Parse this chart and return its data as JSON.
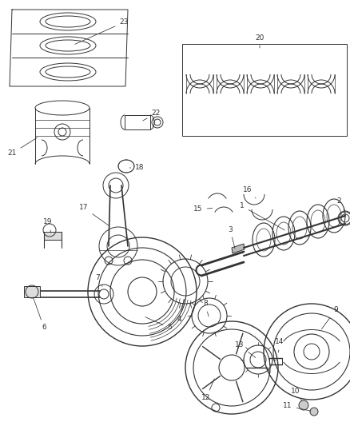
{
  "bg_color": "#ffffff",
  "line_color": "#333333",
  "fig_width": 4.38,
  "fig_height": 5.33,
  "dpi": 100,
  "label_fs": 6.5,
  "lw": 0.7
}
